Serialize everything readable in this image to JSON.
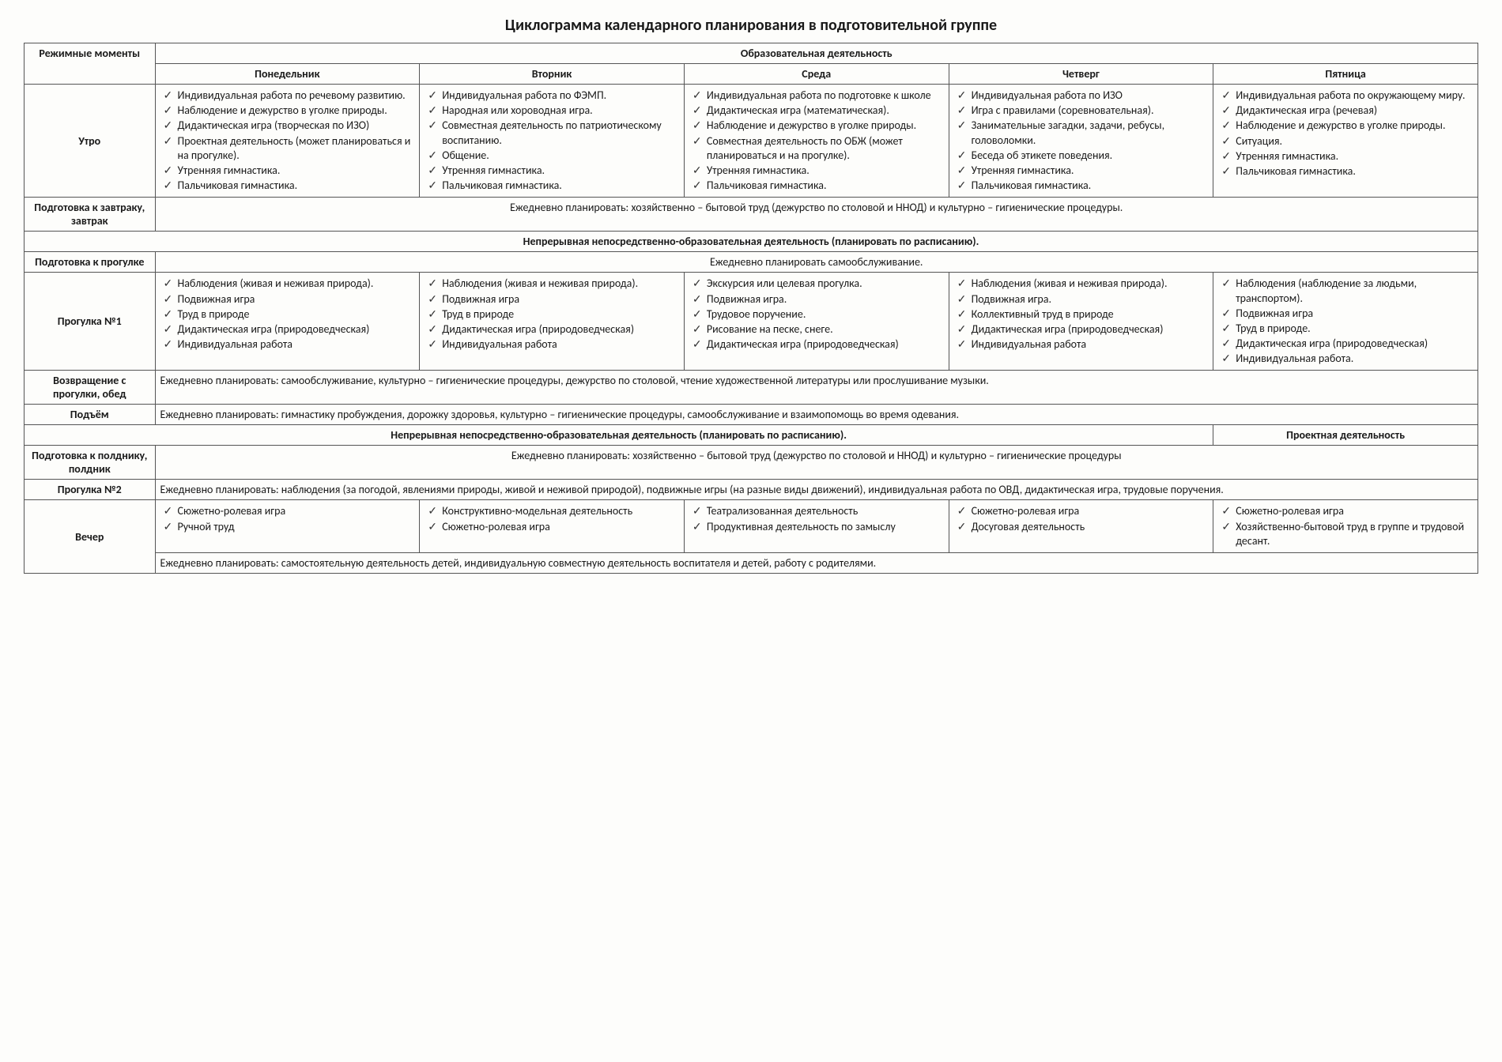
{
  "title": "Циклограмма календарного планирования в подготовительной группе",
  "header": {
    "col0": "Режимные моменты",
    "edu": "Образовательная деятельность",
    "days": [
      "Понедельник",
      "Вторник",
      "Среда",
      "Четверг",
      "Пятница"
    ]
  },
  "rows": {
    "morning": {
      "label": "Утро",
      "mon": [
        "Индивидуальная работа по речевому развитию.",
        "Наблюдение и дежурство в уголке природы.",
        "Дидактическая игра (творческая по ИЗО)",
        "Проектная деятельность (может планироваться и на прогулке).",
        "Утренняя гимнастика.",
        "Пальчиковая гимнастика."
      ],
      "tue": [
        "Индивидуальная работа по ФЭМП.",
        "Народная или хороводная игра.",
        "Совместная деятельность по патриотическому воспитанию.",
        "Общение.",
        "Утренняя гимнастика.",
        "Пальчиковая гимнастика."
      ],
      "wed": [
        "Индивидуальная работа по подготовке к школе",
        "Дидактическая игра (математическая).",
        "Наблюдение и дежурство в уголке природы.",
        "Совместная деятельность по ОБЖ (может планироваться и на прогулке).",
        "Утренняя гимнастика.",
        "Пальчиковая гимнастика."
      ],
      "thu": [
        "Индивидуальная работа по ИЗО",
        "Игра с правилами (соревновательная).",
        "Занимательные загадки, задачи, ребусы, головоломки.",
        "Беседа об этикете поведения.",
        "Утренняя гимнастика.",
        "Пальчиковая гимнастика."
      ],
      "fri": [
        "Индивидуальная работа по окружающему миру.",
        "Дидактическая игра (речевая)",
        "Наблюдение и дежурство в уголке природы.",
        "Ситуация.",
        "Утренняя гимнастика.",
        "Пальчиковая гимнастика."
      ]
    },
    "breakfast": {
      "label": "Подготовка к завтраку, завтрак",
      "text": "Ежедневно планировать: хозяйственно – бытовой труд (дежурство по столовой и ННОД) и культурно – гигиенические процедуры."
    },
    "band1": "Непрерывная непосредственно-образовательная деятельность (планировать по расписанию).",
    "prewalk": {
      "label": "Подготовка к прогулке",
      "text": "Ежедневно планировать самообслуживание."
    },
    "walk1": {
      "label": "Прогулка №1",
      "mon": [
        "Наблюдения (живая и неживая природа).",
        "Подвижная игра",
        "Труд в природе",
        "Дидактическая игра (природоведческая)",
        "Индивидуальная работа"
      ],
      "tue": [
        "Наблюдения (живая и неживая природа).",
        "Подвижная игра",
        "Труд в природе",
        "Дидактическая игра (природоведческая)",
        "Индивидуальная работа"
      ],
      "wed": [
        "Экскурсия или целевая прогулка.",
        "Подвижная игра.",
        "Трудовое поручение.",
        "Рисование на песке, снеге.",
        "Дидактическая игра (природоведческая)"
      ],
      "thu": [
        "Наблюдения (живая и неживая природа).",
        "Подвижная игра.",
        "Коллективный труд в природе",
        "Дидактическая игра (природоведческая)",
        "Индивидуальная работа"
      ],
      "fri": [
        "Наблюдения (наблюдение за людьми, транспортом).",
        "Подвижная игра",
        "Труд в природе.",
        "Дидактическая игра (природоведческая)",
        "Индивидуальная работа."
      ]
    },
    "returnLunch": {
      "label": "Возвращение с прогулки, обед",
      "text": "Ежедневно планировать: самообслуживание, культурно – гигиенические процедуры, дежурство по столовой, чтение художественной литературы или прослушивание музыки."
    },
    "rise": {
      "label": "Подъём",
      "text": "Ежедневно планировать: гимнастику пробуждения, дорожку здоровья, культурно – гигиенические процедуры, самообслуживание и взаимопомощь во время одевания."
    },
    "band2": {
      "left": "Непрерывная непосредственно-образовательная деятельность (планировать по расписанию).",
      "right": "Проектная деятельность"
    },
    "snack": {
      "label": "Подготовка к полднику, полдник",
      "text": "Ежедневно планировать: хозяйственно – бытовой труд (дежурство по столовой и ННОД) и культурно – гигиенические процедуры"
    },
    "walk2": {
      "label": "Прогулка №2",
      "text": "Ежедневно планировать: наблюдения (за погодой, явлениями природы, живой и неживой природой), подвижные игры (на разные виды движений), индивидуальная работа по ОВД, дидактическая игра, трудовые поручения."
    },
    "evening": {
      "label": "Вечер",
      "mon": [
        "Сюжетно-ролевая игра",
        "Ручной труд"
      ],
      "tue": [
        "Конструктивно-модельная деятельность",
        "Сюжетно-ролевая игра"
      ],
      "wed": [
        "Театрализованная деятельность",
        "Продуктивная деятельность по замыслу"
      ],
      "thu": [
        "Сюжетно-ролевая игра",
        "Досуговая деятельность"
      ],
      "fri": [
        "Сюжетно-ролевая игра",
        "Хозяйственно-бытовой труд в группе и трудовой десант."
      ],
      "footer": "Ежедневно планировать: самостоятельную деятельность детей, индивидуальную совместную деятельность воспитателя и детей, работу с родителями."
    }
  }
}
